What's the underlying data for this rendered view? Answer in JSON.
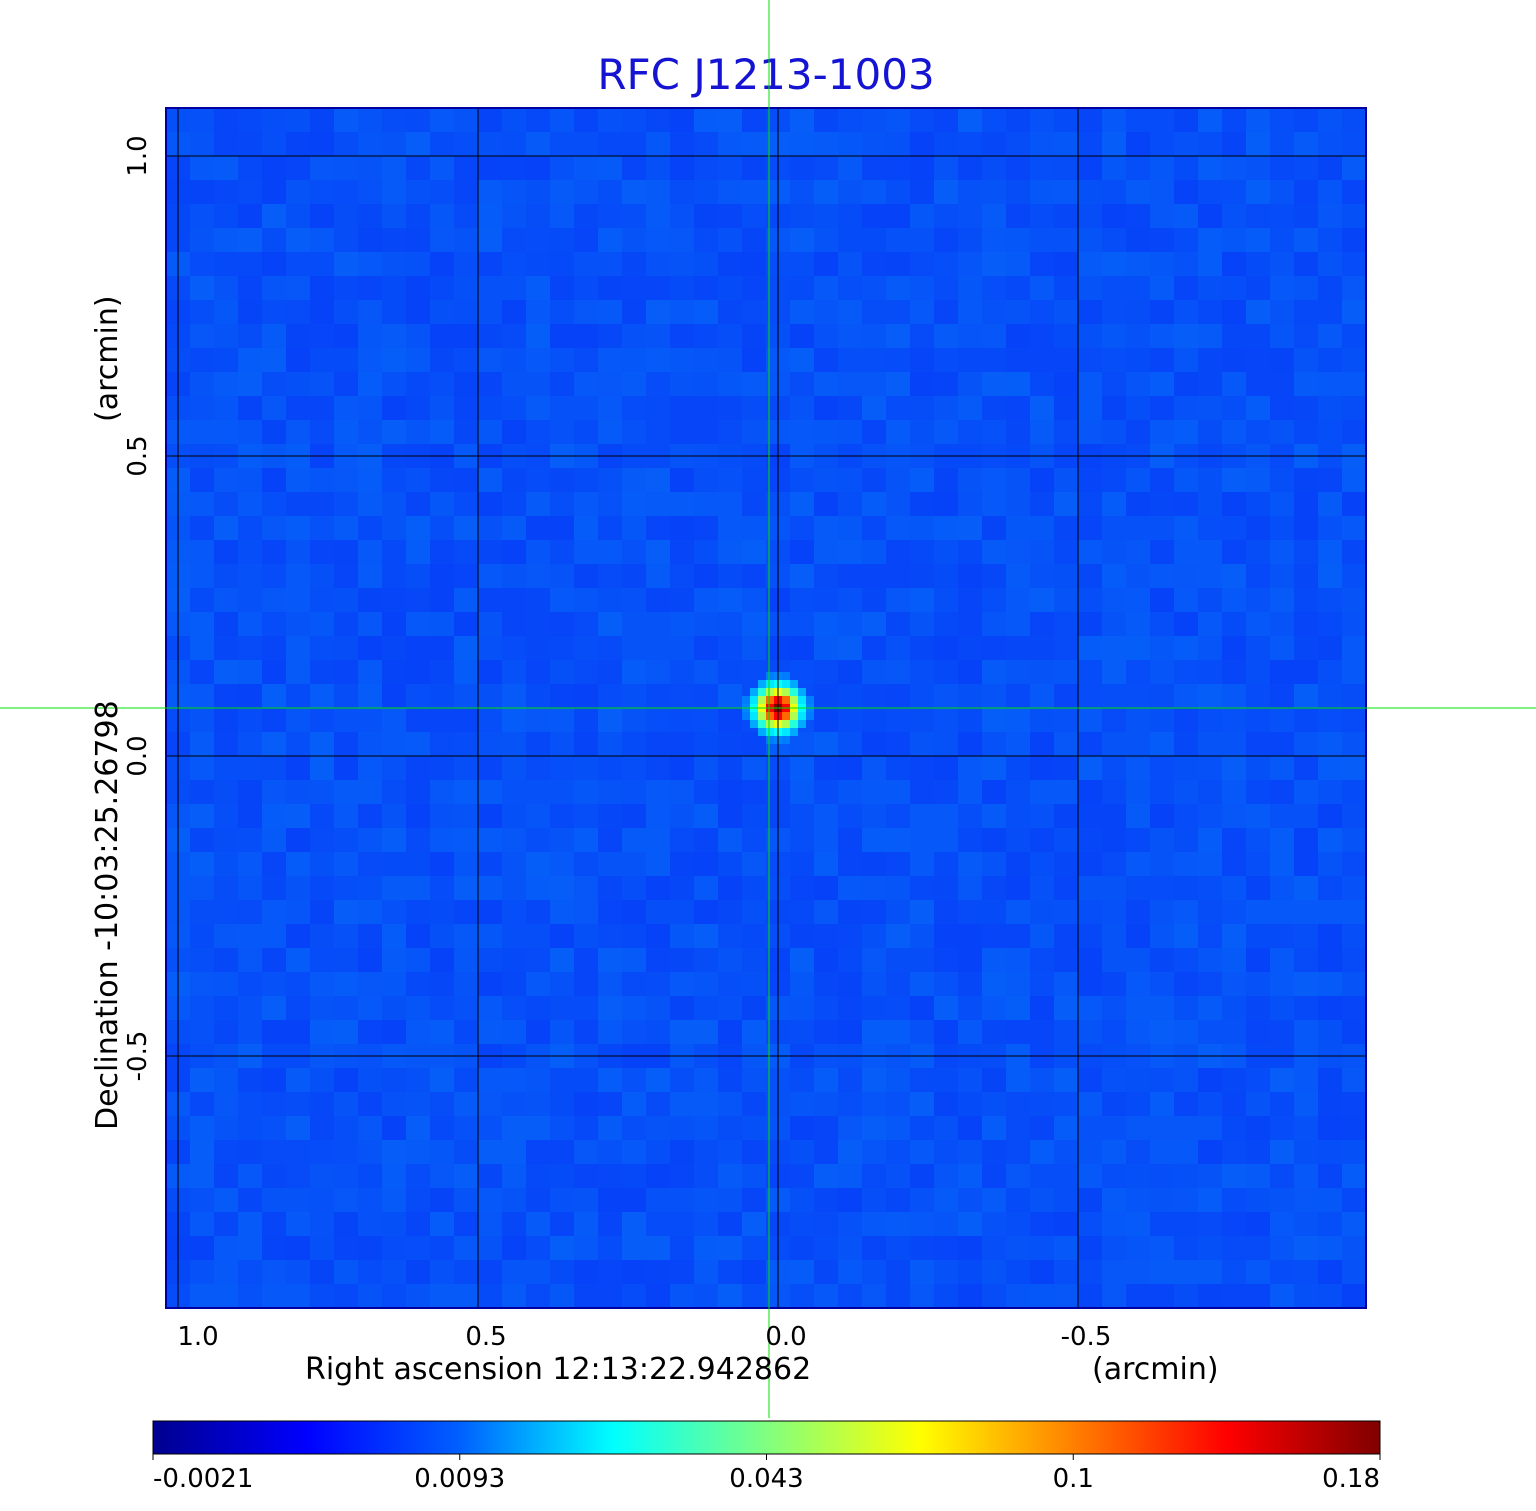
{
  "chart_data": {
    "type": "heatmap",
    "title": "RFC J1213-1003",
    "title_color": "#1414d2",
    "xlabel": "Right ascension  12:13:22.942862",
    "xunit": "(arcmin)",
    "ylabel": "Declination  -10:03:25.26798",
    "yunit": "(arcmin)",
    "x_ticks": [
      1.0,
      0.5,
      0.0,
      -0.5
    ],
    "x_tick_labels": [
      "1.0",
      "0.5",
      "0.0",
      "-0.5"
    ],
    "y_ticks": [
      1.0,
      0.5,
      0.0,
      -0.5
    ],
    "y_tick_labels": [
      "1.0",
      "0.5",
      "0.0",
      "-0.5"
    ],
    "xlim": [
      1.02,
      -0.98
    ],
    "ylim": [
      -0.92,
      1.08
    ],
    "grid": true,
    "crosshair": {
      "x": 0.015,
      "y": 0.08,
      "color": "#00e000"
    },
    "source_peak": {
      "x": 0.0,
      "y": 0.08,
      "value": 0.18
    },
    "colormap": "jet",
    "colorbar": {
      "ticks": [
        -0.0021,
        0.0093,
        0.043,
        0.1,
        0.18
      ],
      "tick_labels": [
        "-0.0021",
        "0.0093",
        "0.043",
        "0.1",
        "0.18"
      ],
      "min": -0.0021,
      "max": 0.18
    }
  }
}
